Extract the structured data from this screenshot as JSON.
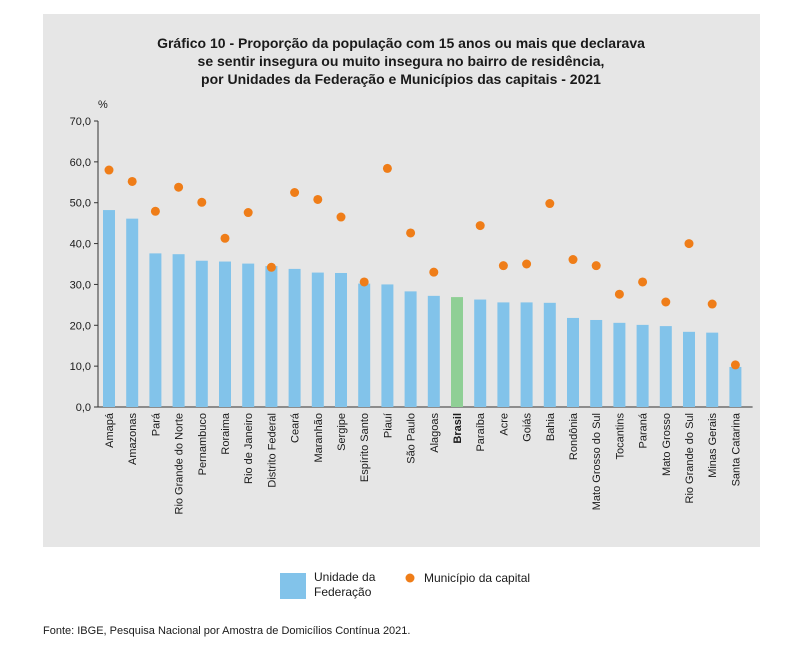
{
  "chart_data": {
    "type": "bar",
    "title_lines": [
      "Gráfico 10 - Proporção da população com 15 anos ou mais que declarava",
      "se sentir insegura ou muito insegura no bairro de residência,",
      "por Unidades da Federação e Municípios das capitais - 2021"
    ],
    "ylabel": "%",
    "ylim": [
      0,
      70
    ],
    "yticks": [
      "0,0",
      "10,0",
      "20,0",
      "30,0",
      "40,0",
      "50,0",
      "60,0",
      "70,0"
    ],
    "grid": false,
    "highlight_category": "Brasil",
    "categories": [
      "Amapá",
      "Amazonas",
      "Pará",
      "Rio Grande do Norte",
      "Pernambuco",
      "Roraima",
      "Rio de Janeiro",
      "Distrito Federal",
      "Ceará",
      "Maranhão",
      "Sergipe",
      "Espírito Santo",
      "Piauí",
      "São Paulo",
      "Alagoas",
      "Brasil",
      "Paraíba",
      "Acre",
      "Goiás",
      "Bahia",
      "Rondônia",
      "Mato Grosso do Sul",
      "Tocantins",
      "Paraná",
      "Mato Grosso",
      "Rio Grande do Sul",
      "Minas Gerais",
      "Santa Catarina"
    ],
    "series": [
      {
        "name": "Unidade da Federação",
        "kind": "bar",
        "color": "#82c3ea",
        "highlight_color": "#8fcf95",
        "values": [
          48.2,
          46.1,
          37.6,
          37.4,
          35.8,
          35.6,
          35.1,
          34.5,
          33.8,
          32.9,
          32.8,
          30.2,
          30.0,
          28.3,
          27.2,
          26.9,
          26.3,
          25.6,
          25.6,
          25.5,
          21.8,
          21.3,
          20.6,
          20.1,
          19.8,
          18.4,
          18.2,
          9.8
        ]
      },
      {
        "name": "Município da capital",
        "kind": "dot",
        "color": "#ef7d18",
        "values": [
          58.0,
          55.2,
          47.9,
          53.8,
          50.1,
          41.3,
          47.6,
          34.2,
          52.5,
          50.8,
          46.5,
          30.6,
          58.4,
          42.6,
          33.0,
          null,
          44.4,
          34.6,
          35.0,
          49.8,
          36.1,
          34.6,
          27.6,
          30.6,
          25.7,
          40.0,
          25.2,
          10.3
        ]
      }
    ],
    "legend_position": "bottom"
  },
  "legend": {
    "bar_line1": "Unidade da",
    "bar_line2": "Federação",
    "dot_label": "Município da capital"
  },
  "source": "Fonte: IBGE, Pesquisa Nacional por Amostra de Domicílios Contínua 2021."
}
